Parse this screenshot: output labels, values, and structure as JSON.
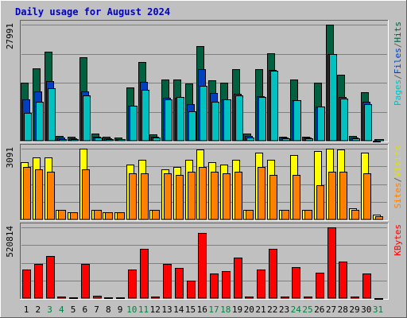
{
  "title": "Daily usage for August 2024",
  "chart_data": [
    {
      "type": "bar",
      "panel": "top",
      "ymax_label": "27991",
      "ylim": [
        0,
        27991
      ],
      "legend_parts": [
        {
          "text": "Pages",
          "color": "#00c0c0"
        },
        {
          "text": "/",
          "color": "#606060"
        },
        {
          "text": "Files",
          "color": "#0040c0"
        },
        {
          "text": "/",
          "color": "#606060"
        },
        {
          "text": "Hits",
          "color": "#006040"
        }
      ],
      "categories": [
        "1",
        "2",
        "3",
        "4",
        "5",
        "6",
        "7",
        "8",
        "9",
        "10",
        "11",
        "12",
        "13",
        "14",
        "15",
        "16",
        "17",
        "18",
        "19",
        "20",
        "21",
        "22",
        "23",
        "24",
        "25",
        "26",
        "27",
        "28",
        "29",
        "30",
        "31"
      ],
      "series": [
        {
          "name": "Hits",
          "color": "#006040",
          "values": [
            13900,
            17500,
            21500,
            1200,
            900,
            20100,
            1700,
            900,
            700,
            12800,
            19000,
            1500,
            14800,
            14700,
            13800,
            22800,
            14600,
            14000,
            17200,
            1800,
            17300,
            21100,
            1000,
            14800,
            1000,
            14000,
            27991,
            16000,
            1200,
            11600,
            0
          ]
        },
        {
          "name": "Files",
          "color": "#0040c0",
          "values": [
            9900,
            11900,
            14400,
            700,
            600,
            11900,
            1000,
            500,
            400,
            8500,
            14100,
            900,
            10300,
            10300,
            8800,
            17300,
            11500,
            10000,
            11400,
            1100,
            10700,
            17000,
            700,
            9800,
            700,
            8300,
            20900,
            10500,
            800,
            9400,
            300
          ]
        },
        {
          "name": "Pages",
          "color": "#00c0c0",
          "values": [
            6700,
            9400,
            12600,
            400,
            400,
            10900,
            800,
            300,
            300,
            8400,
            12200,
            700,
            9900,
            10600,
            7100,
            13200,
            9300,
            10000,
            11000,
            800,
            10600,
            16900,
            500,
            9800,
            500,
            8300,
            20900,
            10100,
            600,
            8800,
            300
          ]
        }
      ]
    },
    {
      "type": "bar",
      "panel": "middle",
      "ymax_label": "3091",
      "ylim": [
        0,
        3091
      ],
      "legend_parts": [
        {
          "text": "Sites",
          "color": "#ff8000"
        },
        {
          "text": "/",
          "color": "#606060"
        },
        {
          "text": "Visits",
          "color": "#e0e000"
        }
      ],
      "categories": [
        "1",
        "2",
        "3",
        "4",
        "5",
        "6",
        "7",
        "8",
        "9",
        "10",
        "11",
        "12",
        "13",
        "14",
        "15",
        "16",
        "17",
        "18",
        "19",
        "20",
        "21",
        "22",
        "23",
        "24",
        "25",
        "26",
        "27",
        "28",
        "29",
        "30",
        "31"
      ],
      "series": [
        {
          "name": "Visits",
          "color": "#ffff00",
          "values": [
            2500,
            2700,
            2700,
            400,
            300,
            3091,
            400,
            300,
            300,
            2400,
            2600,
            400,
            2200,
            2300,
            2600,
            3050,
            2500,
            2400,
            2600,
            400,
            2900,
            2600,
            400,
            2800,
            400,
            3000,
            3091,
            3050,
            500,
            2900,
            200
          ]
        },
        {
          "name": "Sites",
          "color": "#ff8000",
          "values": [
            2300,
            2200,
            2100,
            400,
            300,
            2200,
            400,
            300,
            300,
            2000,
            2000,
            400,
            2000,
            1950,
            2100,
            2300,
            2100,
            2000,
            2100,
            400,
            2300,
            1950,
            400,
            1950,
            400,
            1500,
            2100,
            2100,
            400,
            2000,
            150
          ]
        }
      ]
    },
    {
      "type": "bar",
      "panel": "bottom",
      "ymax_label": "520814",
      "ylim": [
        0,
        520814
      ],
      "legend_parts": [
        {
          "text": "KBytes",
          "color": "#ff0000"
        }
      ],
      "categories": [
        "1",
        "2",
        "3",
        "4",
        "5",
        "6",
        "7",
        "8",
        "9",
        "10",
        "11",
        "12",
        "13",
        "14",
        "15",
        "16",
        "17",
        "18",
        "19",
        "20",
        "21",
        "22",
        "23",
        "24",
        "25",
        "26",
        "27",
        "28",
        "29",
        "30",
        "31"
      ],
      "series": [
        {
          "name": "KBytes",
          "color": "#ff0000",
          "values": [
            210000,
            250000,
            310000,
            10000,
            5000,
            250000,
            20000,
            5000,
            5000,
            210000,
            360000,
            10000,
            250000,
            220000,
            130000,
            480000,
            180000,
            200000,
            300000,
            10000,
            210000,
            360000,
            10000,
            230000,
            10000,
            190000,
            520814,
            270000,
            10000,
            180000,
            0
          ]
        }
      ]
    }
  ],
  "weekend_color": "#008040",
  "weekday_color": "#000000",
  "weekend_days": [
    "3",
    "4",
    "10",
    "11",
    "17",
    "18",
    "24",
    "25",
    "31"
  ]
}
